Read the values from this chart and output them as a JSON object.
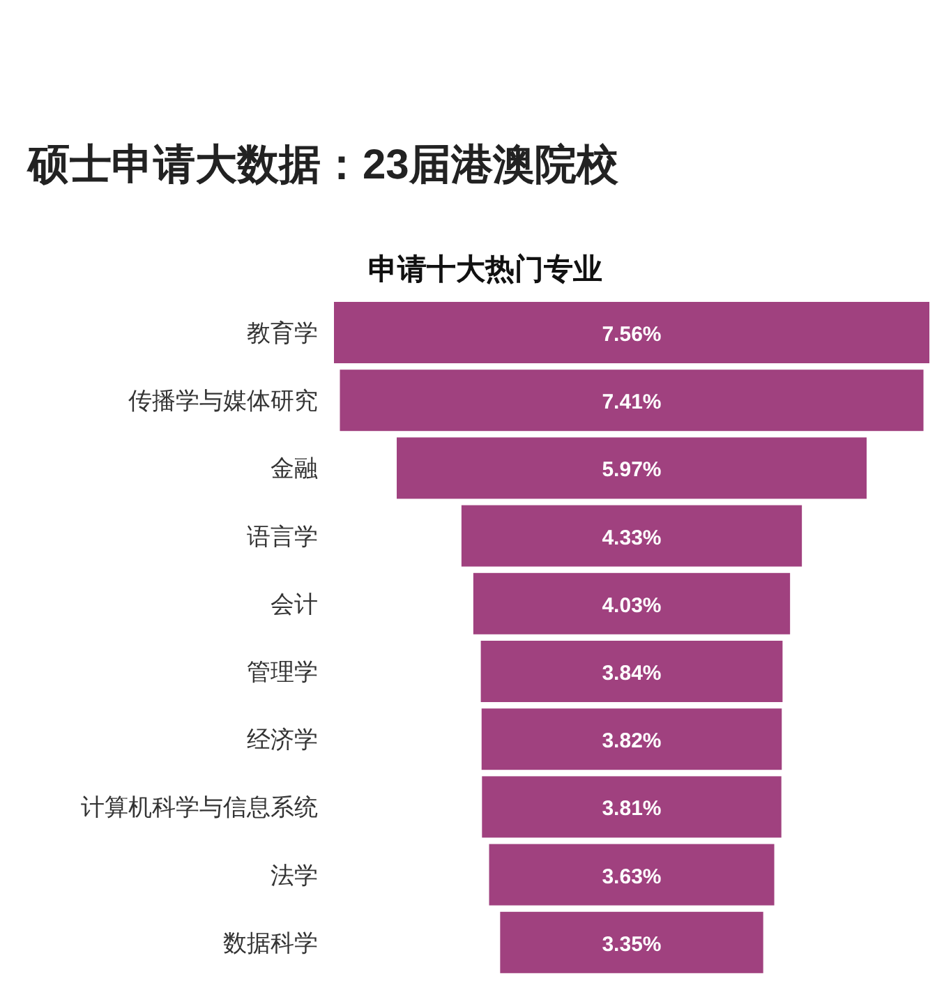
{
  "chart_data": {
    "type": "other",
    "title": "硕士申请大数据：23届港澳院校",
    "subtitle": "申请十大热门专业",
    "categories": [
      "教育学",
      "传播学与媒体研究",
      "金融",
      "语言学",
      "会计",
      "管理学",
      "经济学",
      "计算机科学与信息系统",
      "法学",
      "数据科学"
    ],
    "values": [
      7.56,
      7.41,
      5.97,
      4.33,
      4.03,
      3.84,
      3.82,
      3.81,
      3.63,
      3.35
    ],
    "value_labels": [
      "7.56%",
      "7.41%",
      "5.97%",
      "4.33%",
      "4.03%",
      "3.84%",
      "3.82%",
      "3.81%",
      "3.63%",
      "3.35%"
    ],
    "color": "#a0417f"
  }
}
